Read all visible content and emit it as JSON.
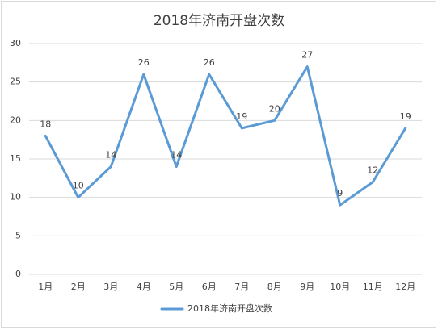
{
  "chart_data": {
    "type": "line",
    "title": "2018年济南开盘次数",
    "categories": [
      "1月",
      "2月",
      "3月",
      "4月",
      "5月",
      "6月",
      "7月",
      "8月",
      "9月",
      "10月",
      "11月",
      "12月"
    ],
    "series": [
      {
        "name": "2018年济南开盘次数",
        "color": "#5b9bd5",
        "values": [
          18,
          10,
          14,
          26,
          14,
          26,
          19,
          20,
          27,
          9,
          12,
          19
        ]
      }
    ],
    "ylim": [
      0,
      30
    ],
    "yticks": [
      0,
      5,
      10,
      15,
      20,
      25,
      30
    ],
    "grid": true,
    "legend": "bottom"
  }
}
